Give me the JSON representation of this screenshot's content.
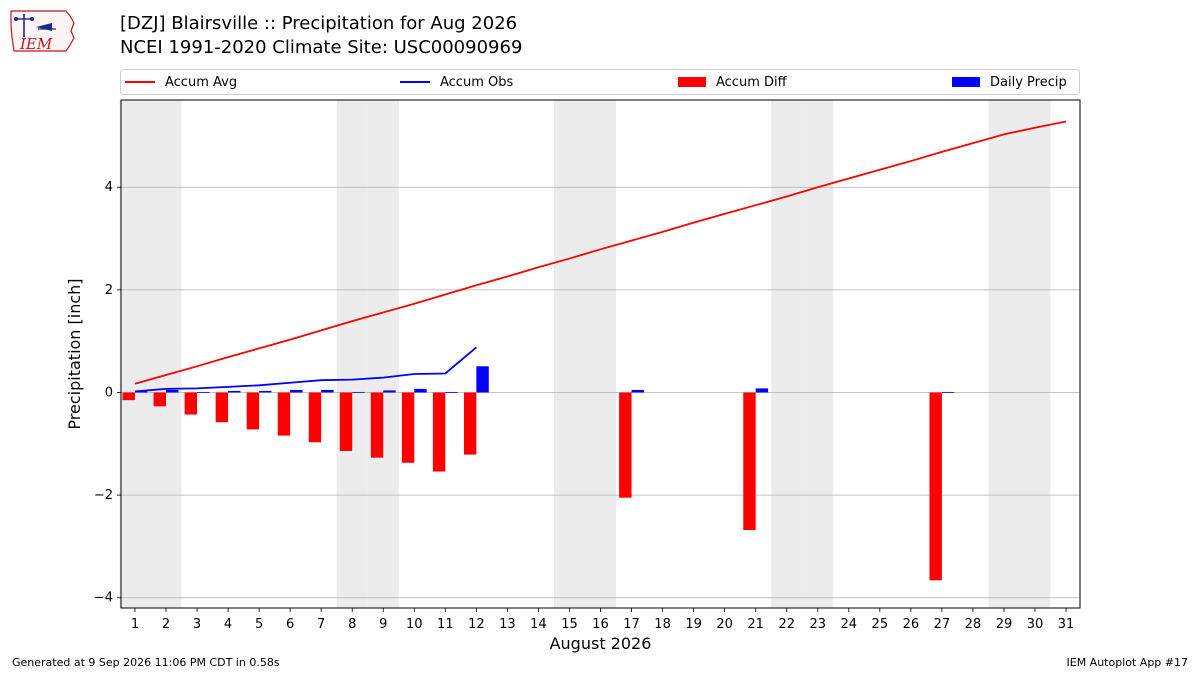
{
  "header": {
    "title_line1": "[DZJ] Blairsville :: Precipitation for Aug 2026",
    "title_line2": "NCEI 1991-2020 Climate Site: USC00090969"
  },
  "logo": {
    "text": "IEM",
    "icon": "iem-logo"
  },
  "footer": {
    "left": "Generated at 9 Sep 2026 11:06 PM CDT in 0.58s",
    "right": "IEM Autoplot App #17"
  },
  "chart_data": {
    "type": "bar",
    "xlabel": "August 2026",
    "ylabel": "Precipitation [inch]",
    "ylim": [
      -4.2,
      5.7
    ],
    "xlim": [
      0.55,
      31.45
    ],
    "yticks": [
      -4,
      -2,
      0,
      2,
      4
    ],
    "ytick_labels": [
      "−4",
      "−2",
      "0",
      "2",
      "4"
    ],
    "x_ticks": [
      1,
      2,
      3,
      4,
      5,
      6,
      7,
      8,
      9,
      10,
      11,
      12,
      13,
      14,
      15,
      16,
      17,
      18,
      19,
      20,
      21,
      22,
      23,
      24,
      25,
      26,
      27,
      28,
      29,
      30,
      31
    ],
    "weekend_days": [
      1,
      2,
      8,
      9,
      15,
      16,
      22,
      23,
      29,
      30
    ],
    "grid": "y",
    "legend_position": "top",
    "series": [
      {
        "name": "Accum Avg",
        "kind": "line",
        "color": "#ff0000",
        "x": [
          1,
          2,
          3,
          4,
          5,
          6,
          7,
          8,
          9,
          10,
          11,
          12,
          13,
          14,
          15,
          16,
          17,
          18,
          19,
          20,
          21,
          22,
          23,
          24,
          25,
          26,
          27,
          28,
          29,
          30,
          31
        ],
        "values": [
          0.17,
          0.34,
          0.51,
          0.69,
          0.86,
          1.03,
          1.21,
          1.39,
          1.56,
          1.73,
          1.91,
          2.09,
          2.26,
          2.44,
          2.61,
          2.79,
          2.96,
          3.13,
          3.31,
          3.48,
          3.65,
          3.82,
          4.0,
          4.17,
          4.34,
          4.51,
          4.69,
          4.86,
          5.03,
          5.16,
          5.28
        ]
      },
      {
        "name": "Accum Obs",
        "kind": "line",
        "color": "#0000ff",
        "x": [
          1,
          2,
          3,
          4,
          5,
          6,
          7,
          8,
          9,
          10,
          11,
          12
        ],
        "values": [
          0.02,
          0.07,
          0.08,
          0.11,
          0.14,
          0.19,
          0.24,
          0.25,
          0.29,
          0.36,
          0.37,
          0.88
        ]
      },
      {
        "name": "Accum Diff",
        "kind": "bar",
        "color": "#ff0000",
        "offset": -0.2,
        "x": [
          1,
          2,
          3,
          4,
          5,
          6,
          7,
          8,
          9,
          10,
          11,
          12,
          17,
          21,
          27
        ],
        "values": [
          -0.15,
          -0.27,
          -0.43,
          -0.58,
          -0.72,
          -0.84,
          -0.97,
          -1.14,
          -1.27,
          -1.37,
          -1.54,
          -1.21,
          -2.05,
          -2.68,
          -3.66
        ]
      },
      {
        "name": "Daily Precip",
        "kind": "bar",
        "color": "#0000ff",
        "offset": 0.2,
        "x": [
          1,
          2,
          3,
          4,
          5,
          6,
          7,
          8,
          9,
          10,
          11,
          12,
          17,
          21,
          27
        ],
        "values": [
          0.02,
          0.05,
          0.01,
          0.03,
          0.03,
          0.05,
          0.05,
          0.01,
          0.04,
          0.07,
          0.01,
          0.51,
          0.05,
          0.08,
          0.01
        ]
      }
    ]
  }
}
